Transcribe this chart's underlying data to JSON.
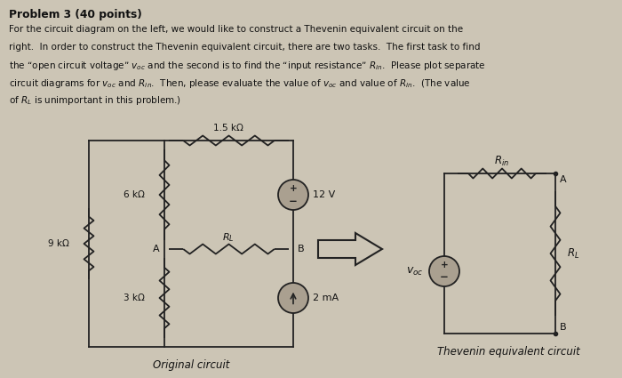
{
  "bg_color": "#ccc5b5",
  "title_text": "Problem 3 (40 points)",
  "line1": "For the circuit diagram on the left, we would like to construct a Thevenin equivalent circuit on the",
  "line2": "right.  In order to construct the Thevenin equivalent circuit, there are two tasks.  The first task to find",
  "line3": "the “open circuit voltage” $v_{oc}$ and the second is to find the “input resistance” $R_{in}$.  Please plot separate",
  "line4": "circuit diagrams for $v_{oc}$ and $R_{in}$.  Then, please evaluate the value of $v_{oc}$ and value of $R_{in}$.  (The value",
  "line5": "of $R_L$ is unimportant in this problem.)",
  "orig_label": "Original circuit",
  "thevenin_label": "Thevenin equivalent circuit",
  "line_color": "#222222",
  "text_color": "#111111"
}
